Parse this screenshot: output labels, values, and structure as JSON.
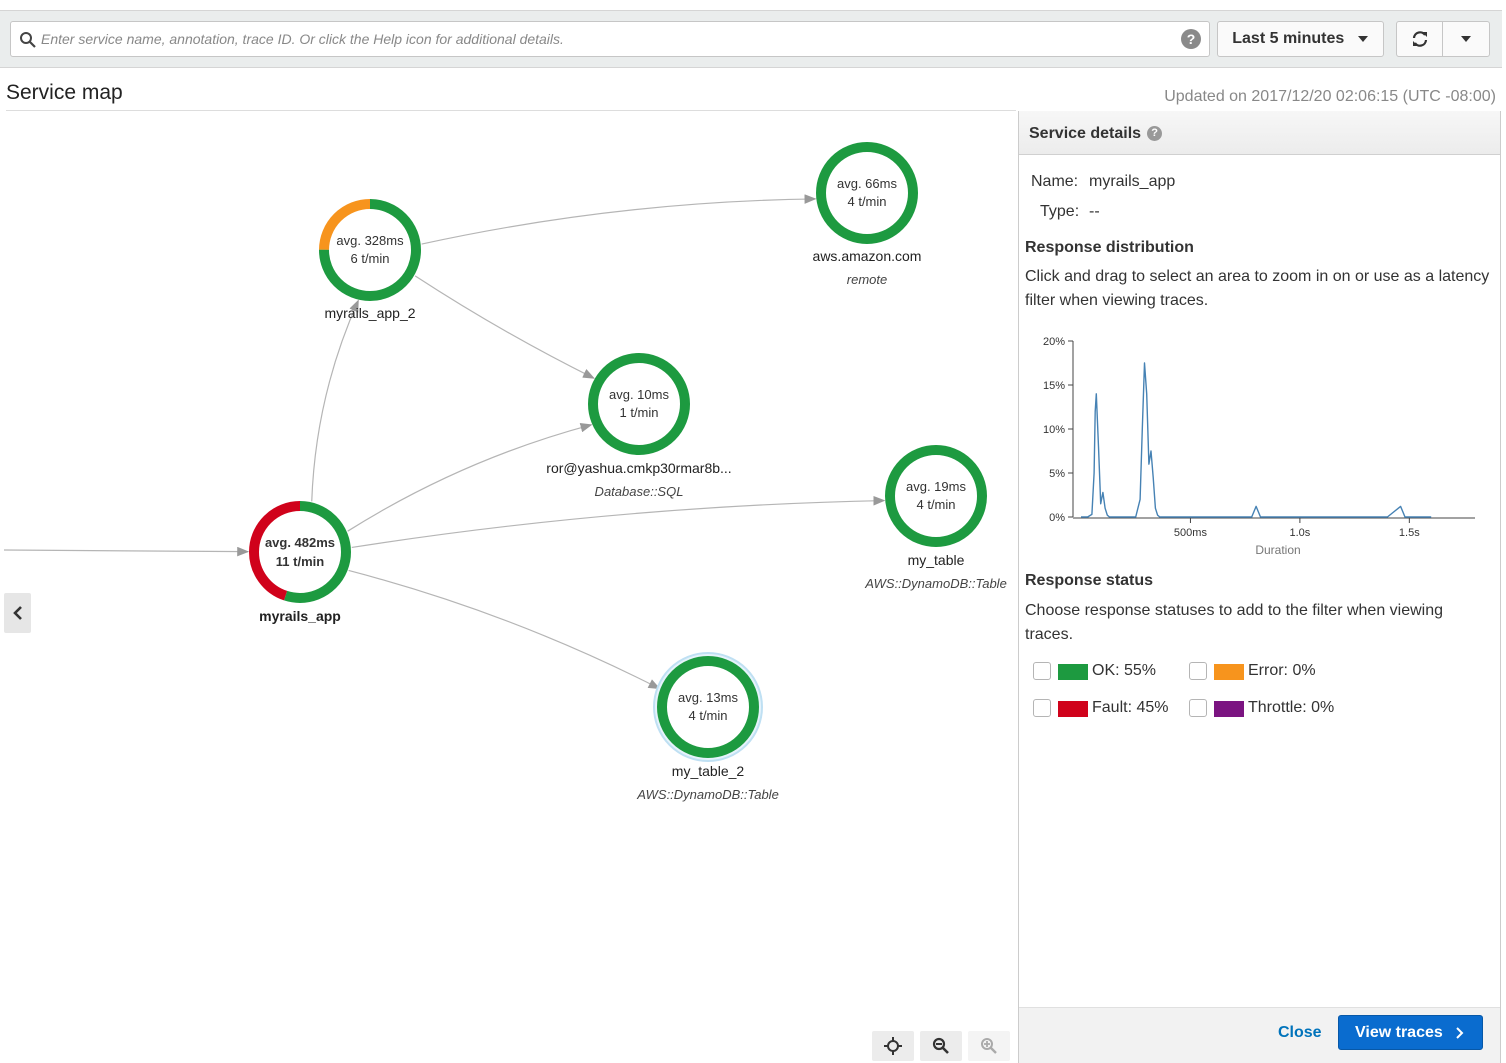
{
  "search": {
    "placeholder": "Enter service name, annotation, trace ID. Or click the Help icon for additional details.",
    "help_label": "?"
  },
  "toolbar": {
    "time_range": "Last 5 minutes",
    "refresh_icon": "refresh-icon",
    "dropdown_icon": "caret-down-icon"
  },
  "page": {
    "title": "Service map",
    "updated": "Updated on 2017/12/20 02:06:15 (UTC -08:00)"
  },
  "nodes": [
    {
      "id": "myrails_app",
      "name": "myrails_app",
      "type": "",
      "avg": "avg. 482ms",
      "rate": "11 t/min",
      "ok_fraction": 0.55,
      "fault_fraction": 0.45,
      "error_fraction": 0
    },
    {
      "id": "myrails_app_2",
      "name": "myrails_app_2",
      "type": "",
      "avg": "avg. 328ms",
      "rate": "6 t/min",
      "ok_fraction": 0.75,
      "fault_fraction": 0,
      "error_fraction": 0.25
    },
    {
      "id": "aws",
      "name": "aws.amazon.com",
      "type": "remote",
      "avg": "avg. 66ms",
      "rate": "4 t/min",
      "ok_fraction": 1,
      "fault_fraction": 0,
      "error_fraction": 0
    },
    {
      "id": "ror",
      "name": "ror@yashua.cmkp30rmar8b...",
      "type": "Database::SQL",
      "avg": "avg. 10ms",
      "rate": "1 t/min",
      "ok_fraction": 1,
      "fault_fraction": 0,
      "error_fraction": 0
    },
    {
      "id": "my_table",
      "name": "my_table",
      "type": "AWS::DynamoDB::Table",
      "avg": "avg. 19ms",
      "rate": "4 t/min",
      "ok_fraction": 1,
      "fault_fraction": 0,
      "error_fraction": 0
    },
    {
      "id": "my_table_2",
      "name": "my_table_2",
      "type": "AWS::DynamoDB::Table",
      "avg": "avg. 13ms",
      "rate": "4 t/min",
      "ok_fraction": 1,
      "fault_fraction": 0,
      "error_fraction": 0
    }
  ],
  "edges": [
    [
      "client",
      "myrails_app"
    ],
    [
      "myrails_app",
      "myrails_app_2"
    ],
    [
      "myrails_app",
      "ror"
    ],
    [
      "myrails_app",
      "my_table"
    ],
    [
      "myrails_app",
      "my_table_2"
    ],
    [
      "myrails_app_2",
      "aws"
    ],
    [
      "myrails_app_2",
      "ror"
    ]
  ],
  "map_controls": {
    "collapse_icon": "chevron-left-icon",
    "center_icon": "crosshair-icon",
    "zoom_out_icon": "zoom-out-icon",
    "zoom_in_icon": "zoom-in-icon"
  },
  "details": {
    "title": "Service details",
    "name_label": "Name:",
    "name_value": "myrails_app",
    "type_label": "Type:",
    "type_value": "--",
    "dist_title": "Response distribution",
    "dist_text": "Click and drag to select an area to zoom in on or use as a latency filter when viewing traces.",
    "status_title": "Response status",
    "status_text": "Choose response statuses to add to the filter when viewing traces.",
    "statuses": [
      {
        "label": "OK: 55%",
        "color": "#1d9a40"
      },
      {
        "label": "Error: 0%",
        "color": "#f7941d"
      },
      {
        "label": "Fault: 45%",
        "color": "#d0021b"
      },
      {
        "label": "Throttle: 0%",
        "color": "#7b1481"
      }
    ],
    "close_label": "Close",
    "view_traces_label": "View traces"
  },
  "colors": {
    "ok": "#1d9a40",
    "error": "#f7941d",
    "fault": "#d0021b",
    "throttle": "#7b1481",
    "line": "#4682b4"
  },
  "chart_data": {
    "type": "line",
    "title": "",
    "xlabel": "Duration",
    "ylabel": "",
    "x_ticks": [
      "500ms",
      "1.0s",
      "1.5s"
    ],
    "y_ticks": [
      "0%",
      "5%",
      "10%",
      "15%",
      "20%"
    ],
    "xlim": [
      0,
      1.8
    ],
    "ylim": [
      0,
      20
    ],
    "series": [
      {
        "x": [
          0.0,
          0.03,
          0.05,
          0.06,
          0.065,
          0.07,
          0.08,
          0.09,
          0.1,
          0.11,
          0.12,
          0.13,
          0.15,
          0.2,
          0.25,
          0.27,
          0.28,
          0.29,
          0.3,
          0.31,
          0.32,
          0.33,
          0.34,
          0.35,
          0.36,
          0.37,
          0.4,
          0.5,
          0.78,
          0.8,
          0.82,
          0.84,
          0.9,
          1.2,
          1.4,
          1.46,
          1.48,
          1.5,
          1.6
        ],
        "y": [
          0,
          0,
          0.3,
          5,
          12,
          14,
          8,
          1.5,
          2.8,
          1,
          0.2,
          0,
          0,
          0,
          0,
          2,
          10,
          17.5,
          14,
          6,
          7.5,
          4.5,
          1,
          0.2,
          0,
          0,
          0,
          0,
          0,
          1.2,
          0,
          0,
          0,
          0,
          0,
          1.2,
          0,
          0,
          0
        ]
      }
    ]
  }
}
